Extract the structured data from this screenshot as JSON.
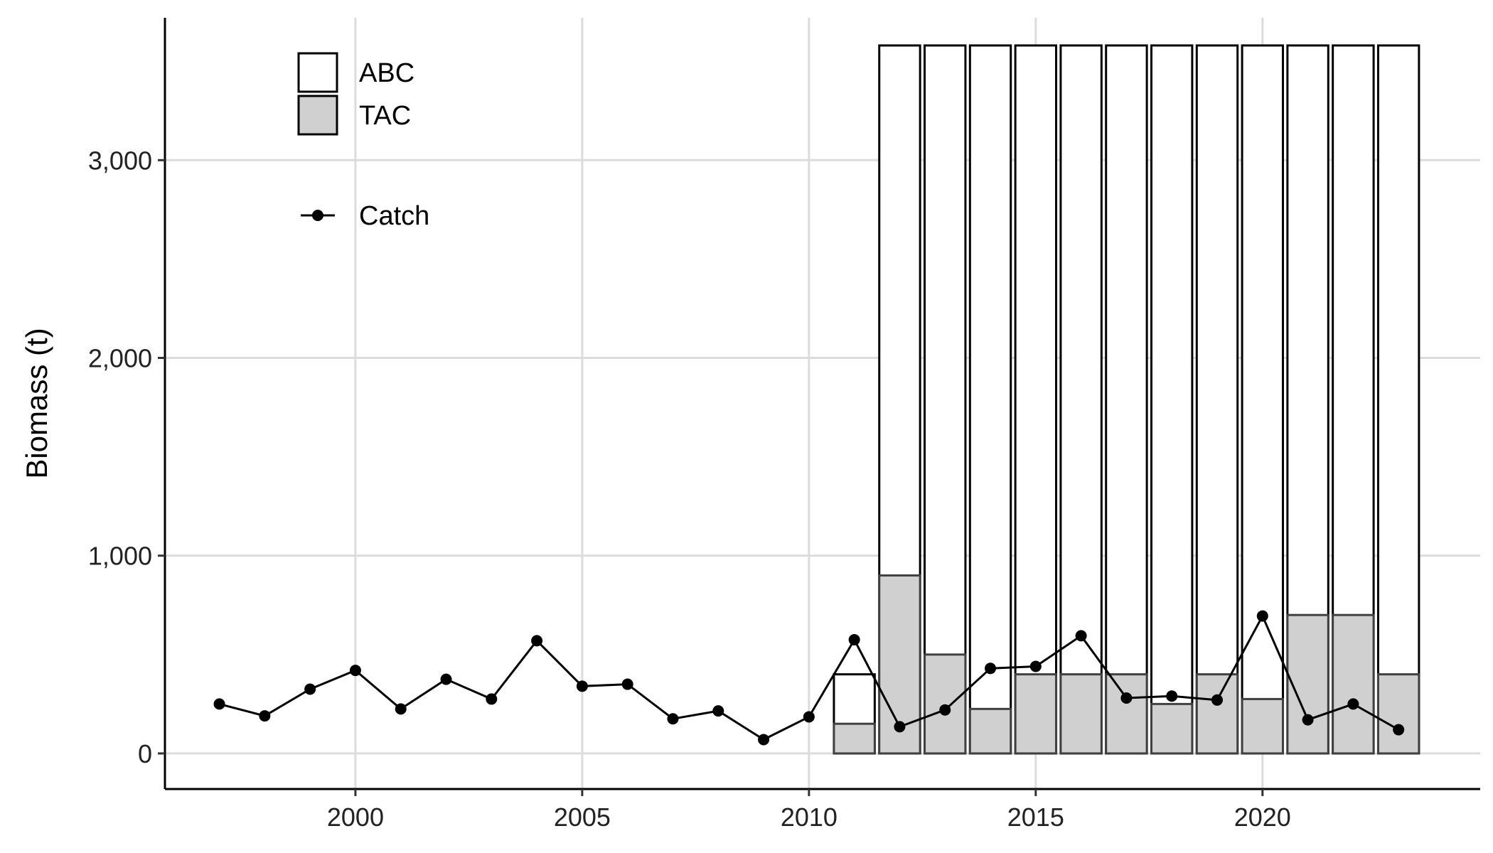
{
  "chart_data": {
    "type": "bar",
    "title": "",
    "xlabel": "",
    "ylabel": "Biomass (t)",
    "xlim": [
      1995.8,
      2024.8
    ],
    "ylim": [
      -180,
      3720
    ],
    "x_ticks": [
      2000,
      2005,
      2010,
      2015,
      2020
    ],
    "x_tick_labels": [
      "2000",
      "2005",
      "2010",
      "2015",
      "2020"
    ],
    "y_ticks": [
      0,
      1000,
      2000,
      3000
    ],
    "y_tick_labels": [
      "0",
      "1,000",
      "2,000",
      "3,000"
    ],
    "grid": true,
    "legend_placement": "top-left",
    "legend": [
      {
        "name": "ABC",
        "symbol": "box",
        "fill": "#ffffff"
      },
      {
        "name": "TAC",
        "symbol": "box",
        "fill": "#d0d0d0"
      },
      {
        "name": "Catch",
        "symbol": "line-point",
        "fill": "#000000"
      }
    ],
    "series": [
      {
        "name": "ABC",
        "type": "bar",
        "x": [
          2011,
          2012,
          2013,
          2014,
          2015,
          2016,
          2017,
          2018,
          2019,
          2020,
          2021,
          2022,
          2023
        ],
        "values": [
          400,
          3580,
          3580,
          3580,
          3580,
          3580,
          3580,
          3580,
          3580,
          3580,
          3580,
          3580,
          3580
        ]
      },
      {
        "name": "TAC",
        "type": "bar",
        "x": [
          2011,
          2012,
          2013,
          2014,
          2015,
          2016,
          2017,
          2018,
          2019,
          2020,
          2021,
          2022,
          2023
        ],
        "values": [
          150,
          900,
          500,
          225,
          400,
          400,
          400,
          250,
          400,
          275,
          700,
          700,
          400
        ]
      },
      {
        "name": "Catch",
        "type": "line",
        "x": [
          1997,
          1998,
          1999,
          2000,
          2001,
          2002,
          2003,
          2004,
          2005,
          2006,
          2007,
          2008,
          2009,
          2010,
          2011,
          2012,
          2013,
          2014,
          2015,
          2016,
          2017,
          2018,
          2019,
          2020,
          2021,
          2022,
          2023
        ],
        "values": [
          250,
          190,
          325,
          420,
          225,
          375,
          275,
          570,
          340,
          350,
          175,
          215,
          70,
          185,
          575,
          135,
          220,
          430,
          440,
          595,
          280,
          290,
          270,
          695,
          170,
          250,
          120
        ]
      }
    ]
  }
}
